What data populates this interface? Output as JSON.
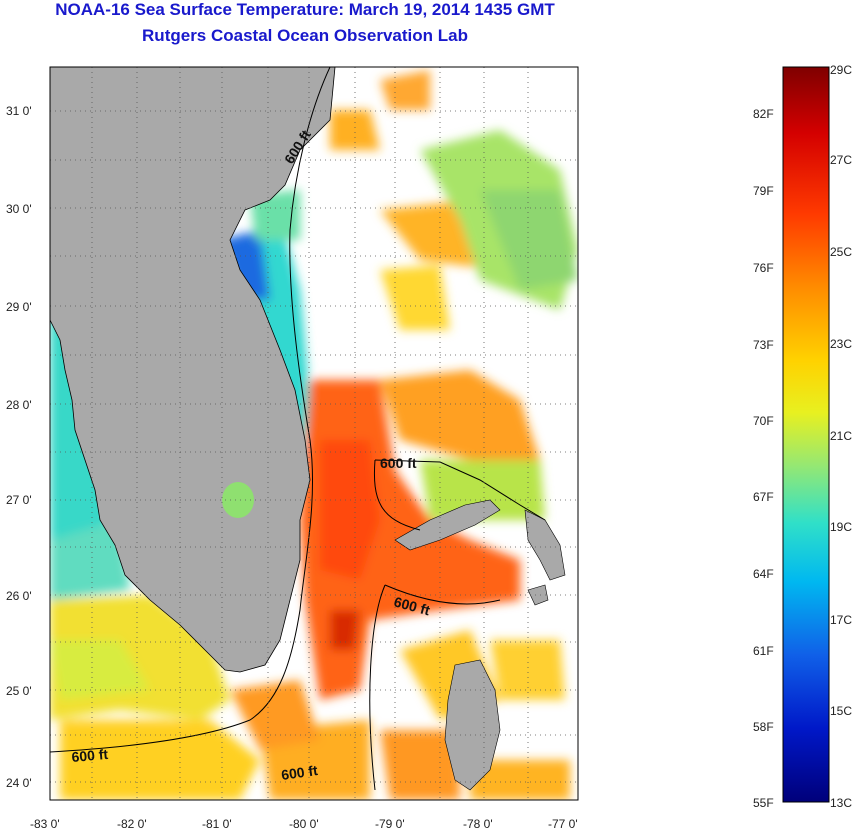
{
  "header": {
    "title": "NOAA-16 Sea Surface Temperature:  March 19, 2014 1435 GMT",
    "subtitle": "Rutgers Coastal Ocean Observation Lab"
  },
  "map": {
    "lon_ticks": [
      "-83 0'",
      "-82 0'",
      "-81 0'",
      "-80 0'",
      "-79 0'",
      "-78 0'",
      "-77 0'"
    ],
    "lat_ticks": [
      "31 0'",
      "30 0'",
      "29 0'",
      "28 0'",
      "27 0'",
      "26 0'",
      "25 0'",
      "24 0'"
    ],
    "contour_labels": [
      "600 ft",
      "600 ft",
      "600 ft",
      "600 ft",
      "600 ft"
    ],
    "land_color": "#a9a9a9",
    "grid": "dotted"
  },
  "colorbar": {
    "fahrenheit_labels": [
      "82F",
      "79F",
      "76F",
      "73F",
      "70F",
      "67F",
      "64F",
      "61F",
      "58F",
      "55F"
    ],
    "celsius_labels": [
      "29C",
      "27C",
      "25C",
      "23C",
      "21C",
      "19C",
      "17C",
      "15C",
      "13C"
    ],
    "colors_top_to_bottom": [
      "#7f0000",
      "#d40000",
      "#ff3a00",
      "#ff8c00",
      "#ffd200",
      "#e8f020",
      "#98e870",
      "#30e0c8",
      "#00b8f0",
      "#1060e8",
      "#0018c8",
      "#00007a"
    ]
  }
}
